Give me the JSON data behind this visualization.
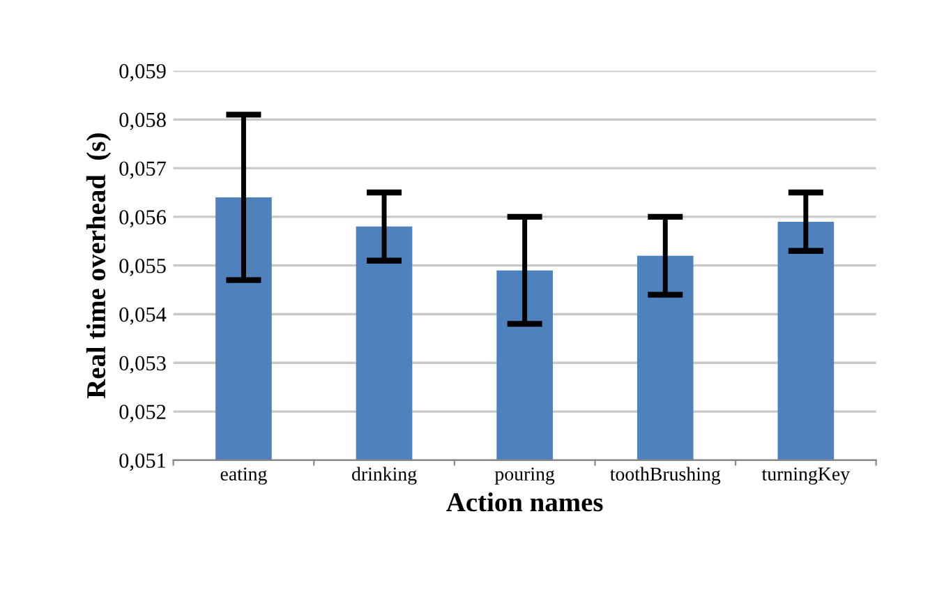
{
  "chart_data": {
    "type": "bar",
    "xlabel": "Action names",
    "ylabel": "Real time overhead  (s)",
    "categories": [
      "eating",
      "drinking",
      "pouring",
      "toothBrushing",
      "turningKey"
    ],
    "values": [
      0.0564,
      0.0558,
      0.0549,
      0.0552,
      0.0559
    ],
    "errors": [
      0.0017,
      0.0007,
      0.0011,
      0.0008,
      0.0006
    ],
    "color": "#4f81bd",
    "ylim": [
      0.051,
      0.059
    ],
    "yticks": [
      {
        "value": 0.051,
        "label": "0,051"
      },
      {
        "value": 0.052,
        "label": "0,052"
      },
      {
        "value": 0.053,
        "label": "0,053"
      },
      {
        "value": 0.054,
        "label": "0,054"
      },
      {
        "value": 0.055,
        "label": "0,055"
      },
      {
        "value": 0.056,
        "label": "0,056"
      },
      {
        "value": 0.057,
        "label": "0,057"
      },
      {
        "value": 0.058,
        "label": "0,058"
      },
      {
        "value": 0.059,
        "label": "0,059"
      }
    ],
    "grid": "y"
  }
}
